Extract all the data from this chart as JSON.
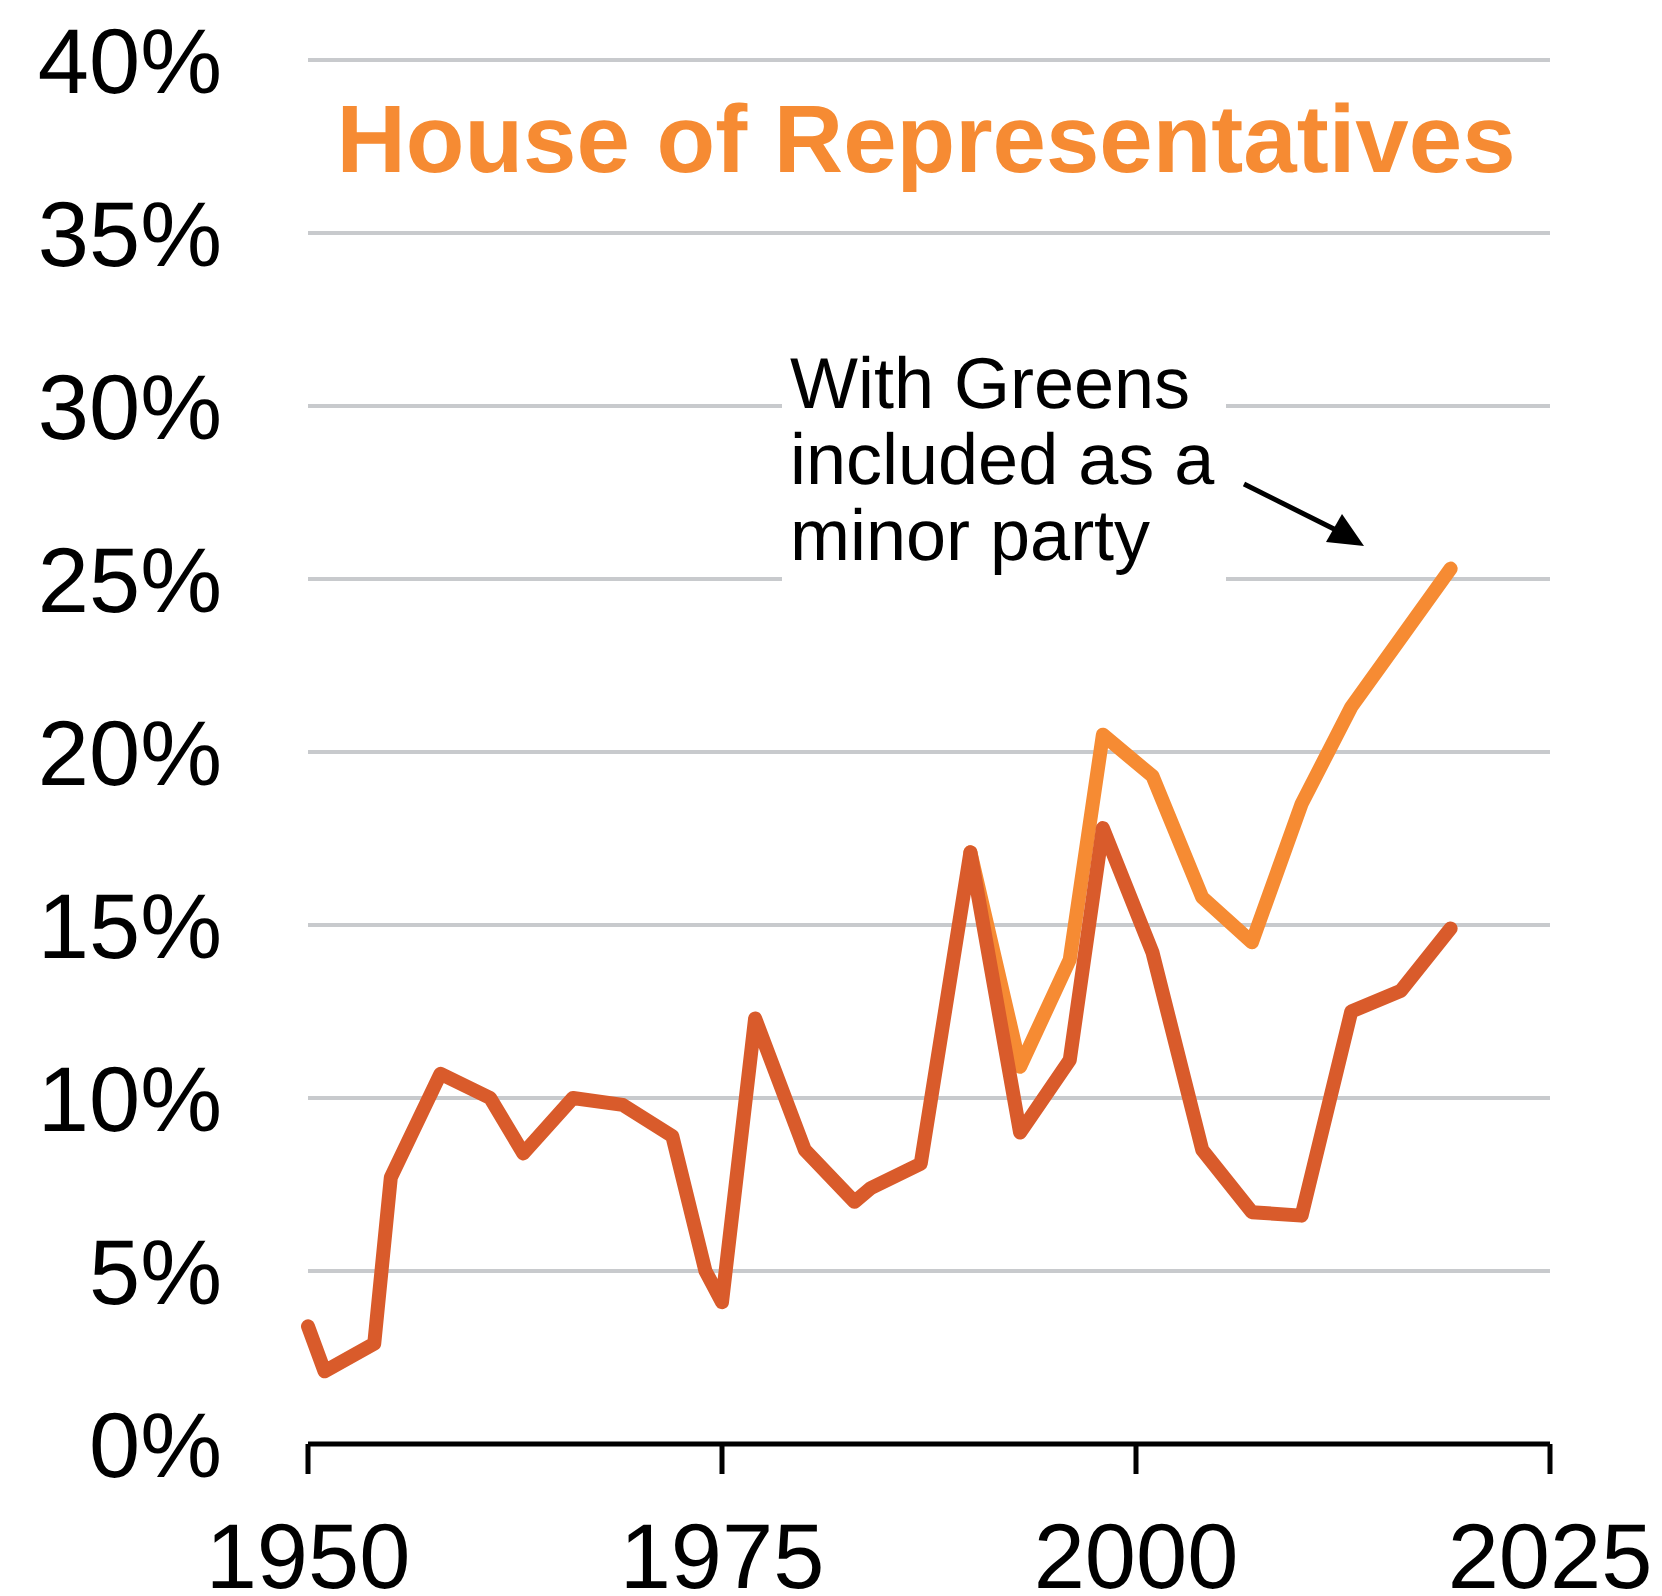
{
  "chart_data": {
    "type": "line",
    "title": "House of Representatives",
    "x": [
      1950,
      1951,
      1954,
      1955,
      1958,
      1961,
      1963,
      1966,
      1969,
      1972,
      1974,
      1975,
      1977,
      1980,
      1983,
      1984,
      1987,
      1990,
      1993,
      1996,
      1998,
      2001,
      2004,
      2007,
      2010,
      2013,
      2016,
      2019
    ],
    "series": [
      {
        "color": "#f68b33",
        "x": [
          1990,
          1993,
          1996,
          1998,
          2001,
          2004,
          2007,
          2010,
          2013,
          2016,
          2019
        ],
        "values": [
          17.1,
          10.9,
          14.0,
          20.5,
          19.3,
          15.8,
          14.5,
          18.5,
          21.3,
          23.3,
          25.3
        ]
      },
      {
        "color": "#d95b2b",
        "values": [
          3.4,
          2.1,
          2.9,
          7.7,
          10.7,
          10.0,
          8.4,
          10.0,
          9.8,
          8.9,
          5.0,
          4.1,
          12.3,
          8.5,
          7.0,
          7.4,
          8.1,
          17.1,
          9.0,
          11.1,
          17.8,
          14.2,
          8.5,
          6.7,
          6.6,
          12.5,
          13.1,
          14.9
        ]
      }
    ],
    "xlim": [
      1950,
      2025
    ],
    "xticks": [
      1950,
      1975,
      2000,
      2025
    ],
    "ylim": [
      0,
      40
    ],
    "yticks": [
      {
        "value": 0,
        "label": "0%"
      },
      {
        "value": 5,
        "label": "5%"
      },
      {
        "value": 10,
        "label": "10%"
      },
      {
        "value": 15,
        "label": "15%"
      },
      {
        "value": 20,
        "label": "20%"
      },
      {
        "value": 25,
        "label": "25%"
      },
      {
        "value": 30,
        "label": "30%"
      },
      {
        "value": 35,
        "label": "35%"
      },
      {
        "value": 40,
        "label": "40%"
      }
    ],
    "grid": "y",
    "annotations": [
      "With Greens included as a minor party"
    ]
  }
}
